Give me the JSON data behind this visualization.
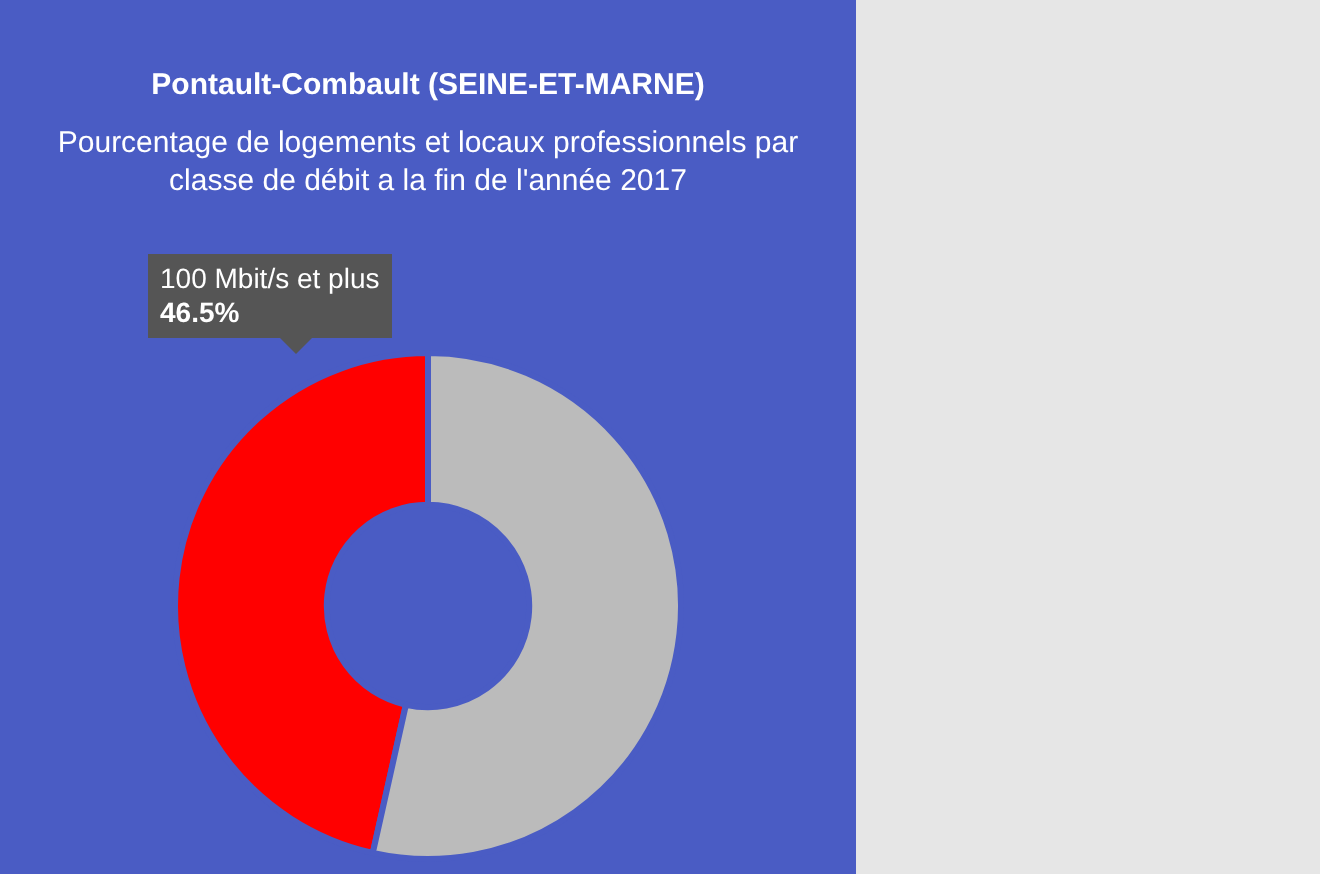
{
  "chart_data": {
    "type": "donut",
    "title": "Pontault-Combault (SEINE-ET-MARNE)",
    "subtitle": "Pourcentage de logements et locaux professionnels par classe de débit a la fin de l'année 2017",
    "categories": [
      "100 Mbit/s et plus",
      null
    ],
    "values": [
      46.5,
      53.5
    ],
    "colors": [
      "#ff0000",
      "#bbbbbb"
    ],
    "value_labels": [
      "46.5%",
      null
    ],
    "legend": false
  }
}
